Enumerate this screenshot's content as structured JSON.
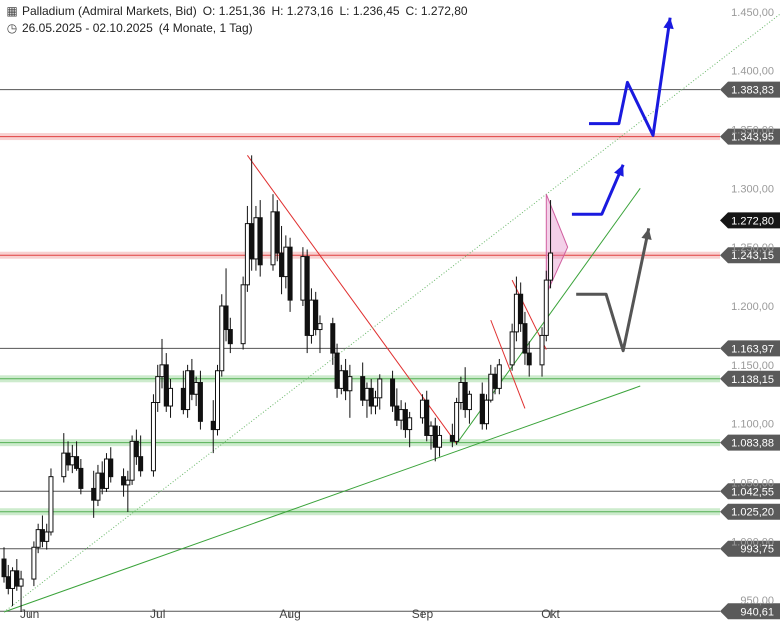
{
  "header": {
    "title": "Palladium (Admiral Markets, Bid)",
    "open": "O: 1.251,36",
    "high": "H: 1.273,16",
    "low": "L: 1.236,45",
    "close": "C: 1.272,80",
    "range": "26.05.2025 - 02.10.2025",
    "interval": "(4 Monate, 1 Tag)"
  },
  "chart_data": {
    "type": "candlestick",
    "y_min": 940,
    "y_max": 1460,
    "y_ticks": [
      {
        "v": 1450,
        "label": "1.450,00"
      },
      {
        "v": 1400,
        "label": "1.400,00"
      },
      {
        "v": 1350,
        "label": "1.350,00"
      },
      {
        "v": 1300,
        "label": "1.300,00"
      },
      {
        "v": 1250,
        "label": "1.250,00"
      },
      {
        "v": 1200,
        "label": "1.200,00"
      },
      {
        "v": 1150,
        "label": "1.150,00"
      },
      {
        "v": 1100,
        "label": "1.100,00"
      },
      {
        "v": 1050,
        "label": "1.050,00"
      },
      {
        "v": 1000,
        "label": "1.000,00"
      },
      {
        "v": 950,
        "label": "950,00"
      }
    ],
    "x_labels": [
      {
        "date": "2025-06-01",
        "label": "Jun"
      },
      {
        "date": "2025-07-01",
        "label": "Jul"
      },
      {
        "date": "2025-08-01",
        "label": "Aug"
      },
      {
        "date": "2025-09-01",
        "label": "Sep"
      },
      {
        "date": "2025-10-01",
        "label": "Okt"
      }
    ],
    "levels": [
      {
        "value": 1383.83,
        "label": "1.383,83",
        "style": "gray"
      },
      {
        "value": 1343.95,
        "label": "1.343,95",
        "style": "red"
      },
      {
        "value": 1272.8,
        "label": "1.272,80",
        "style": "current"
      },
      {
        "value": 1243.15,
        "label": "1.243,15",
        "style": "red"
      },
      {
        "value": 1163.97,
        "label": "1.163,97",
        "style": "gray"
      },
      {
        "value": 1138.15,
        "label": "1.138,15",
        "style": "green"
      },
      {
        "value": 1083.88,
        "label": "1.083,88",
        "style": "green"
      },
      {
        "value": 1042.55,
        "label": "1.042,55",
        "style": "gray"
      },
      {
        "value": 1025.2,
        "label": "1.025,20",
        "style": "green"
      },
      {
        "value": 993.75,
        "label": "993,75",
        "style": "gray"
      },
      {
        "value": 940.61,
        "label": "940,61",
        "style": "gray"
      }
    ],
    "candles": [
      {
        "d": "2025-05-26",
        "o": 985,
        "h": 995,
        "l": 965,
        "c": 970
      },
      {
        "d": "2025-05-27",
        "o": 970,
        "h": 980,
        "l": 955,
        "c": 960
      },
      {
        "d": "2025-05-28",
        "o": 960,
        "h": 978,
        "l": 945,
        "c": 975
      },
      {
        "d": "2025-05-29",
        "o": 975,
        "h": 985,
        "l": 958,
        "c": 962
      },
      {
        "d": "2025-05-30",
        "o": 962,
        "h": 975,
        "l": 940,
        "c": 968
      },
      {
        "d": "2025-06-02",
        "o": 968,
        "h": 1000,
        "l": 962,
        "c": 995
      },
      {
        "d": "2025-06-03",
        "o": 995,
        "h": 1015,
        "l": 990,
        "c": 1010
      },
      {
        "d": "2025-06-04",
        "o": 1010,
        "h": 1022,
        "l": 995,
        "c": 1000
      },
      {
        "d": "2025-06-05",
        "o": 1000,
        "h": 1015,
        "l": 993,
        "c": 1008
      },
      {
        "d": "2025-06-06",
        "o": 1008,
        "h": 1062,
        "l": 1005,
        "c": 1055
      },
      {
        "d": "2025-06-09",
        "o": 1055,
        "h": 1092,
        "l": 1050,
        "c": 1075
      },
      {
        "d": "2025-06-10",
        "o": 1075,
        "h": 1085,
        "l": 1060,
        "c": 1065
      },
      {
        "d": "2025-06-11",
        "o": 1065,
        "h": 1082,
        "l": 1058,
        "c": 1072
      },
      {
        "d": "2025-06-12",
        "o": 1072,
        "h": 1085,
        "l": 1060,
        "c": 1062
      },
      {
        "d": "2025-06-13",
        "o": 1062,
        "h": 1070,
        "l": 1040,
        "c": 1045
      },
      {
        "d": "2025-06-16",
        "o": 1045,
        "h": 1060,
        "l": 1020,
        "c": 1035
      },
      {
        "d": "2025-06-17",
        "o": 1035,
        "h": 1065,
        "l": 1030,
        "c": 1058
      },
      {
        "d": "2025-06-18",
        "o": 1058,
        "h": 1068,
        "l": 1040,
        "c": 1045
      },
      {
        "d": "2025-06-19",
        "o": 1045,
        "h": 1075,
        "l": 1042,
        "c": 1070
      },
      {
        "d": "2025-06-20",
        "o": 1070,
        "h": 1080,
        "l": 1050,
        "c": 1055
      },
      {
        "d": "2025-06-23",
        "o": 1055,
        "h": 1062,
        "l": 1038,
        "c": 1048
      },
      {
        "d": "2025-06-24",
        "o": 1048,
        "h": 1060,
        "l": 1025,
        "c": 1052
      },
      {
        "d": "2025-06-25",
        "o": 1052,
        "h": 1090,
        "l": 1048,
        "c": 1085
      },
      {
        "d": "2025-06-26",
        "o": 1085,
        "h": 1095,
        "l": 1065,
        "c": 1072
      },
      {
        "d": "2025-06-27",
        "o": 1072,
        "h": 1090,
        "l": 1055,
        "c": 1060
      },
      {
        "d": "2025-06-30",
        "o": 1060,
        "h": 1125,
        "l": 1055,
        "c": 1118
      },
      {
        "d": "2025-07-01",
        "o": 1118,
        "h": 1150,
        "l": 1110,
        "c": 1140
      },
      {
        "d": "2025-07-02",
        "o": 1140,
        "h": 1172,
        "l": 1130,
        "c": 1150
      },
      {
        "d": "2025-07-03",
        "o": 1150,
        "h": 1160,
        "l": 1110,
        "c": 1115
      },
      {
        "d": "2025-07-04",
        "o": 1115,
        "h": 1138,
        "l": 1105,
        "c": 1130
      },
      {
        "d": "2025-07-07",
        "o": 1130,
        "h": 1145,
        "l": 1108,
        "c": 1112
      },
      {
        "d": "2025-07-08",
        "o": 1112,
        "h": 1150,
        "l": 1105,
        "c": 1145
      },
      {
        "d": "2025-07-09",
        "o": 1145,
        "h": 1155,
        "l": 1120,
        "c": 1125
      },
      {
        "d": "2025-07-10",
        "o": 1125,
        "h": 1140,
        "l": 1115,
        "c": 1135
      },
      {
        "d": "2025-07-11",
        "o": 1135,
        "h": 1145,
        "l": 1095,
        "c": 1102
      },
      {
        "d": "2025-07-14",
        "o": 1102,
        "h": 1120,
        "l": 1075,
        "c": 1095
      },
      {
        "d": "2025-07-15",
        "o": 1095,
        "h": 1150,
        "l": 1090,
        "c": 1145
      },
      {
        "d": "2025-07-16",
        "o": 1145,
        "h": 1210,
        "l": 1140,
        "c": 1200
      },
      {
        "d": "2025-07-17",
        "o": 1200,
        "h": 1232,
        "l": 1170,
        "c": 1180
      },
      {
        "d": "2025-07-18",
        "o": 1180,
        "h": 1190,
        "l": 1160,
        "c": 1168
      },
      {
        "d": "2025-07-21",
        "o": 1168,
        "h": 1225,
        "l": 1163,
        "c": 1218
      },
      {
        "d": "2025-07-22",
        "o": 1218,
        "h": 1285,
        "l": 1212,
        "c": 1270
      },
      {
        "d": "2025-07-23",
        "o": 1270,
        "h": 1328,
        "l": 1230,
        "c": 1240
      },
      {
        "d": "2025-07-24",
        "o": 1240,
        "h": 1285,
        "l": 1230,
        "c": 1275
      },
      {
        "d": "2025-07-25",
        "o": 1275,
        "h": 1290,
        "l": 1225,
        "c": 1235
      },
      {
        "d": "2025-07-28",
        "o": 1235,
        "h": 1295,
        "l": 1230,
        "c": 1280
      },
      {
        "d": "2025-07-29",
        "o": 1280,
        "h": 1290,
        "l": 1238,
        "c": 1245
      },
      {
        "d": "2025-07-30",
        "o": 1245,
        "h": 1268,
        "l": 1210,
        "c": 1225
      },
      {
        "d": "2025-07-31",
        "o": 1225,
        "h": 1260,
        "l": 1215,
        "c": 1250
      },
      {
        "d": "2025-08-01",
        "o": 1250,
        "h": 1258,
        "l": 1195,
        "c": 1205
      },
      {
        "d": "2025-08-04",
        "o": 1205,
        "h": 1250,
        "l": 1200,
        "c": 1242
      },
      {
        "d": "2025-08-05",
        "o": 1242,
        "h": 1248,
        "l": 1160,
        "c": 1175
      },
      {
        "d": "2025-08-06",
        "o": 1175,
        "h": 1215,
        "l": 1168,
        "c": 1205
      },
      {
        "d": "2025-08-07",
        "o": 1205,
        "h": 1212,
        "l": 1175,
        "c": 1180
      },
      {
        "d": "2025-08-08",
        "o": 1180,
        "h": 1192,
        "l": 1160,
        "c": 1185
      },
      {
        "d": "2025-08-11",
        "o": 1185,
        "h": 1190,
        "l": 1150,
        "c": 1160
      },
      {
        "d": "2025-08-12",
        "o": 1160,
        "h": 1168,
        "l": 1122,
        "c": 1130
      },
      {
        "d": "2025-08-13",
        "o": 1130,
        "h": 1150,
        "l": 1125,
        "c": 1145
      },
      {
        "d": "2025-08-14",
        "o": 1145,
        "h": 1155,
        "l": 1120,
        "c": 1128
      },
      {
        "d": "2025-08-15",
        "o": 1128,
        "h": 1150,
        "l": 1105,
        "c": 1140
      },
      {
        "d": "2025-08-18",
        "o": 1140,
        "h": 1152,
        "l": 1115,
        "c": 1120
      },
      {
        "d": "2025-08-19",
        "o": 1120,
        "h": 1135,
        "l": 1105,
        "c": 1130
      },
      {
        "d": "2025-08-20",
        "o": 1130,
        "h": 1138,
        "l": 1108,
        "c": 1115
      },
      {
        "d": "2025-08-21",
        "o": 1115,
        "h": 1128,
        "l": 1108,
        "c": 1122
      },
      {
        "d": "2025-08-22",
        "o": 1122,
        "h": 1142,
        "l": 1112,
        "c": 1138
      },
      {
        "d": "2025-08-25",
        "o": 1138,
        "h": 1145,
        "l": 1110,
        "c": 1115
      },
      {
        "d": "2025-08-26",
        "o": 1115,
        "h": 1130,
        "l": 1098,
        "c": 1103
      },
      {
        "d": "2025-08-27",
        "o": 1103,
        "h": 1120,
        "l": 1095,
        "c": 1112
      },
      {
        "d": "2025-08-28",
        "o": 1112,
        "h": 1118,
        "l": 1088,
        "c": 1095
      },
      {
        "d": "2025-08-29",
        "o": 1095,
        "h": 1110,
        "l": 1080,
        "c": 1105
      },
      {
        "d": "2025-09-01",
        "o": 1105,
        "h": 1125,
        "l": 1100,
        "c": 1120
      },
      {
        "d": "2025-09-02",
        "o": 1120,
        "h": 1128,
        "l": 1085,
        "c": 1090
      },
      {
        "d": "2025-09-03",
        "o": 1090,
        "h": 1102,
        "l": 1078,
        "c": 1098
      },
      {
        "d": "2025-09-04",
        "o": 1098,
        "h": 1105,
        "l": 1068,
        "c": 1080
      },
      {
        "d": "2025-09-05",
        "o": 1080,
        "h": 1098,
        "l": 1072,
        "c": 1090
      },
      {
        "d": "2025-09-08",
        "o": 1090,
        "h": 1100,
        "l": 1080,
        "c": 1085
      },
      {
        "d": "2025-09-09",
        "o": 1085,
        "h": 1122,
        "l": 1082,
        "c": 1118
      },
      {
        "d": "2025-09-10",
        "o": 1118,
        "h": 1140,
        "l": 1112,
        "c": 1135
      },
      {
        "d": "2025-09-11",
        "o": 1135,
        "h": 1148,
        "l": 1105,
        "c": 1112
      },
      {
        "d": "2025-09-12",
        "o": 1112,
        "h": 1128,
        "l": 1100,
        "c": 1125
      },
      {
        "d": "2025-09-15",
        "o": 1125,
        "h": 1135,
        "l": 1095,
        "c": 1100
      },
      {
        "d": "2025-09-16",
        "o": 1100,
        "h": 1125,
        "l": 1095,
        "c": 1120
      },
      {
        "d": "2025-09-17",
        "o": 1120,
        "h": 1150,
        "l": 1118,
        "c": 1142
      },
      {
        "d": "2025-09-18",
        "o": 1142,
        "h": 1148,
        "l": 1125,
        "c": 1130
      },
      {
        "d": "2025-09-19",
        "o": 1130,
        "h": 1155,
        "l": 1125,
        "c": 1150
      },
      {
        "d": "2025-09-22",
        "o": 1150,
        "h": 1185,
        "l": 1145,
        "c": 1178
      },
      {
        "d": "2025-09-23",
        "o": 1178,
        "h": 1225,
        "l": 1170,
        "c": 1210
      },
      {
        "d": "2025-09-24",
        "o": 1210,
        "h": 1220,
        "l": 1178,
        "c": 1185
      },
      {
        "d": "2025-09-25",
        "o": 1185,
        "h": 1195,
        "l": 1150,
        "c": 1160
      },
      {
        "d": "2025-09-26",
        "o": 1160,
        "h": 1170,
        "l": 1140,
        "c": 1150
      },
      {
        "d": "2025-09-29",
        "o": 1150,
        "h": 1182,
        "l": 1140,
        "c": 1175
      },
      {
        "d": "2025-09-30",
        "o": 1175,
        "h": 1230,
        "l": 1170,
        "c": 1222
      },
      {
        "d": "2025-10-01",
        "o": 1222,
        "h": 1290,
        "l": 1215,
        "c": 1245
      }
    ],
    "annotation_lines": [
      {
        "color": "#e03030",
        "points": [
          [
            "2025-07-22",
            1328
          ],
          [
            "2025-09-09",
            1083
          ]
        ]
      },
      {
        "color": "#e03030",
        "points": [
          [
            "2025-09-22",
            1222
          ],
          [
            "2025-09-30",
            1163
          ]
        ]
      },
      {
        "color": "#e03030",
        "points": [
          [
            "2025-09-17",
            1188
          ],
          [
            "2025-09-25",
            1113
          ]
        ]
      },
      {
        "color": "#3aa33a",
        "points": [
          [
            "2025-09-09",
            1083
          ],
          [
            "2025-10-22",
            1300
          ]
        ]
      },
      {
        "color": "#3aa33a",
        "points": [
          [
            "2025-05-26",
            940
          ],
          [
            "2025-10-22",
            1132
          ]
        ]
      }
    ]
  }
}
